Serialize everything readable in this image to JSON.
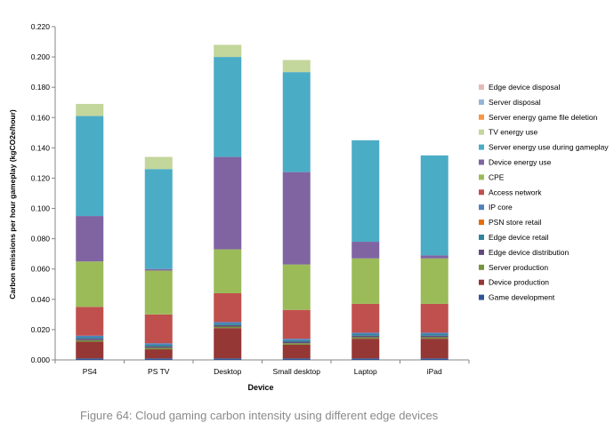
{
  "caption": "Figure 64: Cloud gaming carbon intensity using different edge devices",
  "chart_data": {
    "type": "bar",
    "stacked": true,
    "xlabel": "Device",
    "ylabel": "Carbon emissions per hour gameplay (kgCO2e/hour)",
    "ylim": [
      0,
      0.22
    ],
    "yticks": [
      "0.000",
      "0.020",
      "0.040",
      "0.060",
      "0.080",
      "0.100",
      "0.120",
      "0.140",
      "0.160",
      "0.180",
      "0.200",
      "0.220"
    ],
    "grid": false,
    "legend_position": "right",
    "categories": [
      "PS4",
      "PS TV",
      "Desktop",
      "Small desktop",
      "Laptop",
      "iPad"
    ],
    "series": [
      {
        "name": "Game development",
        "color": "#2f5597",
        "values": [
          0.001,
          0.001,
          0.001,
          0.001,
          0.001,
          0.001
        ]
      },
      {
        "name": "Device production",
        "color": "#953735",
        "values": [
          0.011,
          0.006,
          0.02,
          0.009,
          0.013,
          0.013
        ]
      },
      {
        "name": "Server production",
        "color": "#77933c",
        "values": [
          0.001,
          0.001,
          0.001,
          0.001,
          0.001,
          0.001
        ]
      },
      {
        "name": "Edge device distribution",
        "color": "#604a7b",
        "values": [
          0.001,
          0.001,
          0.001,
          0.001,
          0.001,
          0.001
        ]
      },
      {
        "name": "Edge device retail",
        "color": "#31859c",
        "values": [
          0.001,
          0.001,
          0.001,
          0.001,
          0.001,
          0.001
        ]
      },
      {
        "name": "PSN store retail",
        "color": "#e46c0a",
        "values": [
          0.0,
          0.0,
          0.0,
          0.0,
          0.0,
          0.0
        ]
      },
      {
        "name": "IP core",
        "color": "#4f81bd",
        "values": [
          0.001,
          0.001,
          0.001,
          0.001,
          0.001,
          0.001
        ]
      },
      {
        "name": "Access network",
        "color": "#c0504d",
        "values": [
          0.019,
          0.019,
          0.019,
          0.019,
          0.019,
          0.019
        ]
      },
      {
        "name": "CPE",
        "color": "#9bbb59",
        "values": [
          0.03,
          0.029,
          0.029,
          0.03,
          0.03,
          0.03
        ]
      },
      {
        "name": "Device energy use",
        "color": "#8064a2",
        "values": [
          0.03,
          0.001,
          0.061,
          0.061,
          0.011,
          0.002
        ]
      },
      {
        "name": "Server energy use during gameplay",
        "color": "#4bacc6",
        "values": [
          0.066,
          0.066,
          0.066,
          0.066,
          0.067,
          0.066
        ]
      },
      {
        "name": "TV energy use",
        "color": "#c3d69b",
        "values": [
          0.008,
          0.008,
          0.008,
          0.008,
          0.0,
          0.0
        ]
      },
      {
        "name": "Server energy game file deletion",
        "color": "#f79646",
        "values": [
          0.0,
          0.0,
          0.0,
          0.0,
          0.0,
          0.0
        ]
      },
      {
        "name": "Server disposal",
        "color": "#95b3d7",
        "values": [
          0.0,
          0.0,
          0.0,
          0.0,
          0.0,
          0.0
        ]
      },
      {
        "name": "Edge device disposal",
        "color": "#e6b9b8",
        "values": [
          0.0,
          0.0,
          0.0,
          0.0,
          0.0,
          0.0
        ]
      }
    ]
  }
}
